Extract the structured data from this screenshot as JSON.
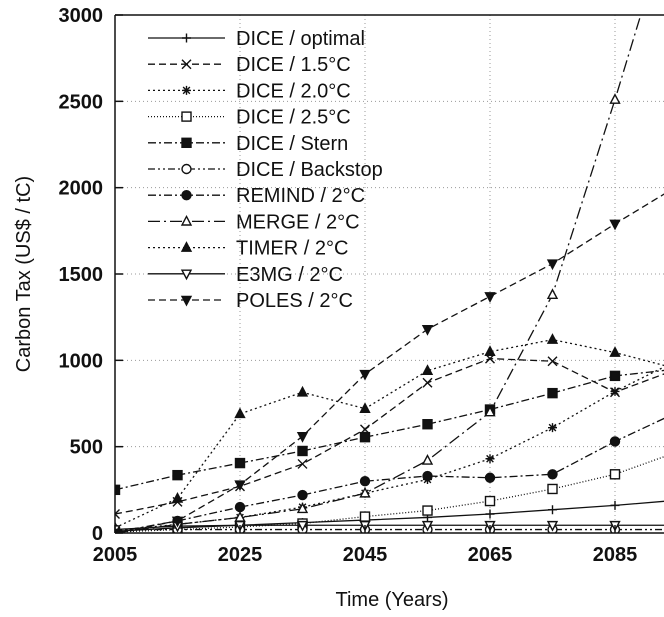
{
  "chart_data": {
    "type": "line",
    "title": "",
    "xlabel": "Time (Years)",
    "ylabel": "Carbon Tax (US$ / tC)",
    "xlim": [
      2005,
      2095
    ],
    "ylim": [
      0,
      3000
    ],
    "xticks": [
      2005,
      2025,
      2045,
      2065,
      2085
    ],
    "yticks": [
      0,
      500,
      1000,
      1500,
      2000,
      2500,
      3000
    ],
    "grid": true,
    "legend_position": "top-left",
    "series": [
      {
        "name": "DICE / optimal",
        "marker": "plus",
        "dash": "solid",
        "x": [
          2005,
          2015,
          2025,
          2035,
          2045,
          2055,
          2065,
          2075,
          2085,
          2095
        ],
        "y": [
          10,
          30,
          45,
          60,
          75,
          90,
          110,
          135,
          160,
          190
        ]
      },
      {
        "name": "DICE / 1.5°C",
        "marker": "x",
        "dash": "dash",
        "x": [
          2005,
          2015,
          2025,
          2035,
          2045,
          2055,
          2065,
          2075,
          2085,
          2095
        ],
        "y": [
          110,
          180,
          270,
          400,
          600,
          870,
          1010,
          995,
          815,
          950
        ]
      },
      {
        "name": "DICE / 2.0°C",
        "marker": "star",
        "dash": "dot",
        "x": [
          2005,
          2015,
          2025,
          2035,
          2045,
          2055,
          2065,
          2075,
          2085,
          2095
        ],
        "y": [
          15,
          50,
          90,
          150,
          230,
          310,
          430,
          610,
          820,
          1000
        ]
      },
      {
        "name": "DICE / 2.5°C",
        "marker": "square-open",
        "dash": "dot-fine",
        "x": [
          2005,
          2015,
          2025,
          2035,
          2045,
          2055,
          2065,
          2075,
          2085,
          2095
        ],
        "y": [
          5,
          20,
          35,
          55,
          95,
          130,
          185,
          255,
          340,
          470
        ]
      },
      {
        "name": "DICE / Stern",
        "marker": "square-filled",
        "dash": "dash-dot",
        "x": [
          2005,
          2015,
          2025,
          2035,
          2045,
          2055,
          2065,
          2075,
          2085,
          2095
        ],
        "y": [
          250,
          335,
          405,
          475,
          555,
          630,
          715,
          810,
          910,
          950
        ]
      },
      {
        "name": "DICE / Backstop",
        "marker": "circle-open",
        "dash": "dash-dot-dot",
        "x": [
          2005,
          2015,
          2025,
          2035,
          2045,
          2055,
          2065,
          2075,
          2085,
          2095
        ],
        "y": [
          20,
          20,
          20,
          20,
          20,
          20,
          20,
          20,
          20,
          20
        ]
      },
      {
        "name": "REMIND / 2°C",
        "marker": "circle-filled",
        "dash": "dash-dot",
        "x": [
          2005,
          2015,
          2025,
          2035,
          2045,
          2055,
          2065,
          2075,
          2085,
          2095
        ],
        "y": [
          5,
          70,
          150,
          220,
          300,
          330,
          320,
          340,
          530,
          700
        ]
      },
      {
        "name": "MERGE / 2°C",
        "marker": "triangle-open",
        "dash": "dash-dot-long",
        "x": [
          2005,
          2015,
          2025,
          2035,
          2045,
          2055,
          2065,
          2075,
          2085,
          2095
        ],
        "y": [
          0,
          50,
          90,
          140,
          230,
          420,
          700,
          1380,
          2510,
          3700
        ]
      },
      {
        "name": "TIMER / 2°C",
        "marker": "triangle-filled",
        "dash": "dot",
        "x": [
          2005,
          2015,
          2025,
          2035,
          2045,
          2055,
          2065,
          2075,
          2085,
          2095
        ],
        "y": [
          30,
          200,
          690,
          815,
          720,
          940,
          1050,
          1120,
          1045,
          950
        ]
      },
      {
        "name": "E3MG / 2°C",
        "marker": "triangle-down-open",
        "dash": "solid",
        "x": [
          2005,
          2015,
          2025,
          2035,
          2045,
          2055,
          2065,
          2075,
          2085,
          2095
        ],
        "y": [
          20,
          40,
          45,
          45,
          45,
          45,
          45,
          45,
          45,
          45
        ]
      },
      {
        "name": "POLES / 2°C",
        "marker": "triangle-down-filled",
        "dash": "dash",
        "x": [
          2005,
          2015,
          2025,
          2035,
          2045,
          2055,
          2065,
          2075,
          2085,
          2095
        ],
        "y": [
          0,
          70,
          280,
          560,
          920,
          1180,
          1370,
          1560,
          1790,
          2010
        ]
      }
    ]
  }
}
